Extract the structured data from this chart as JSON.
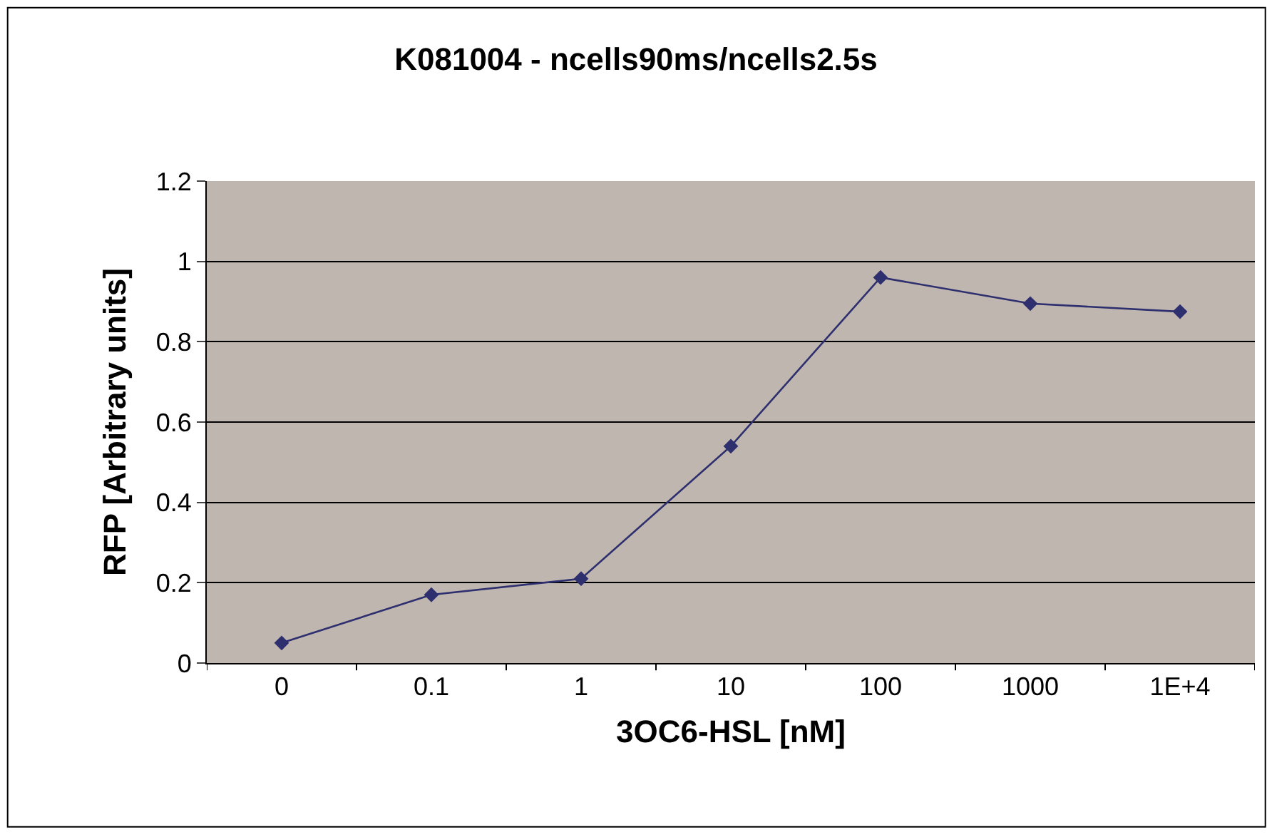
{
  "chart_data": {
    "type": "line",
    "title": "K081004 - ncells90ms/ncells2.5s",
    "xlabel": "3OC6-HSL [nM]",
    "ylabel": "RFP [Arbitrary units]",
    "categories": [
      "0",
      "0.1",
      "1",
      "10",
      "100",
      "1000",
      "1E+4"
    ],
    "series": [
      {
        "color": "#2e2f6e",
        "values": [
          0.05,
          0.17,
          0.21,
          0.54,
          0.96,
          0.895,
          0.875
        ]
      }
    ],
    "ylim": [
      0,
      1.2
    ],
    "yticks": [
      0,
      0.2,
      0.4,
      0.6,
      0.8,
      1,
      1.2
    ],
    "grid": "y",
    "marker": "diamond",
    "line_style": "solid"
  }
}
